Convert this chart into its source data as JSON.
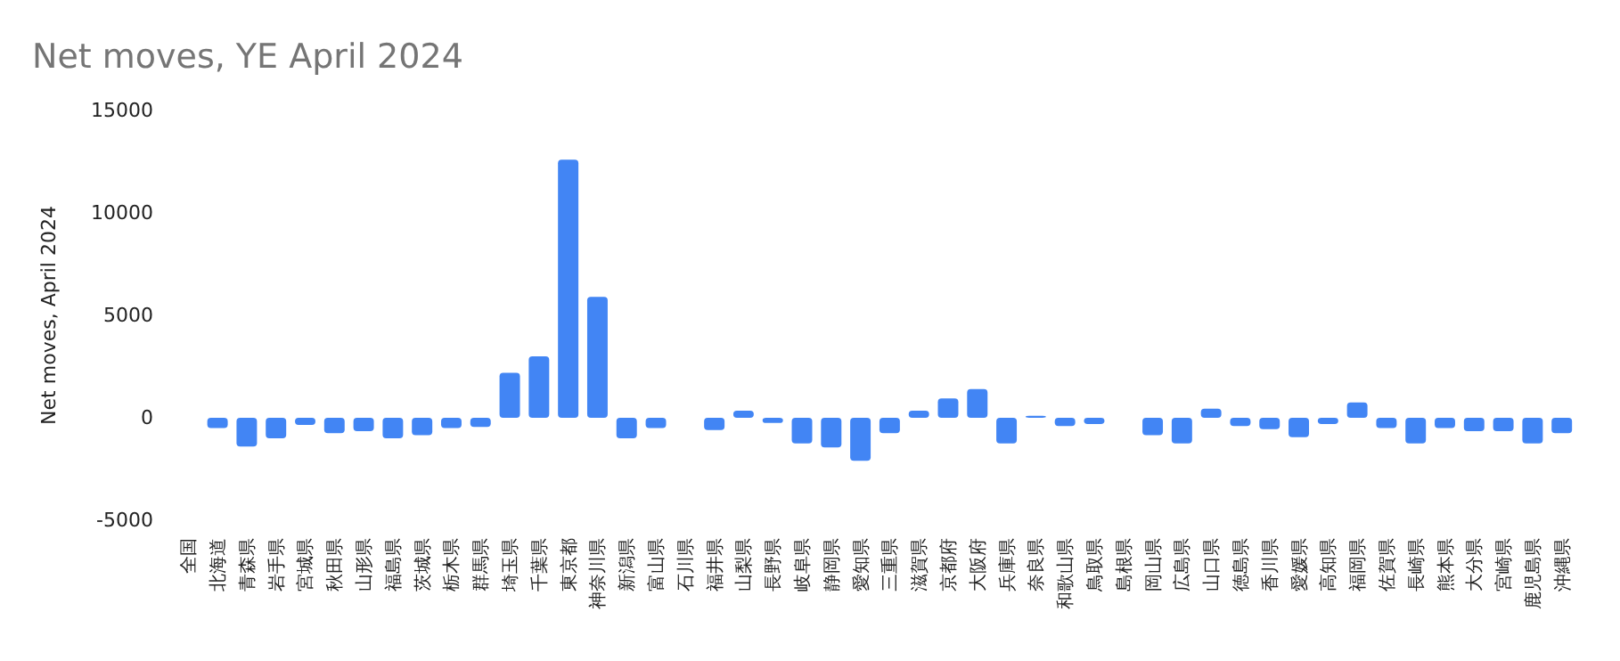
{
  "chart_data": {
    "type": "bar",
    "title": "Net moves, YE April 2024",
    "ylabel": "Net moves, April 2024",
    "categories": [
      "全国",
      "北海道",
      "青森県",
      "岩手県",
      "宮城県",
      "秋田県",
      "山形県",
      "福島県",
      "茨城県",
      "栃木県",
      "群馬県",
      "埼玉県",
      "千葉県",
      "東京都",
      "神奈川県",
      "新潟県",
      "富山県",
      "石川県",
      "福井県",
      "山梨県",
      "長野県",
      "岐阜県",
      "静岡県",
      "愛知県",
      "三重県",
      "滋賀県",
      "京都府",
      "大阪府",
      "兵庫県",
      "奈良県",
      "和歌山県",
      "鳥取県",
      "島根県",
      "岡山県",
      "広島県",
      "山口県",
      "徳島県",
      "香川県",
      "愛媛県",
      "高知県",
      "福岡県",
      "佐賀県",
      "長崎県",
      "熊本県",
      "大分県",
      "宮崎県",
      "鹿児島県",
      "沖縄県"
    ],
    "values": [
      0,
      -500,
      -1400,
      -1000,
      -350,
      -750,
      -650,
      -1000,
      -850,
      -500,
      -450,
      2200,
      3000,
      12600,
      5900,
      -1000,
      -500,
      0,
      -600,
      350,
      -250,
      -1250,
      -1450,
      -2100,
      -750,
      350,
      950,
      1400,
      -1250,
      100,
      -400,
      -300,
      0,
      -850,
      -1250,
      450,
      -400,
      -550,
      -950,
      -300,
      750,
      -500,
      -1250,
      -500,
      -650,
      -650,
      -1250,
      -750
    ],
    "color": "#4285f4",
    "ylim": [
      -5000,
      15000
    ],
    "yticks": [
      -5000,
      0,
      5000,
      10000,
      15000
    ],
    "grid": false
  }
}
